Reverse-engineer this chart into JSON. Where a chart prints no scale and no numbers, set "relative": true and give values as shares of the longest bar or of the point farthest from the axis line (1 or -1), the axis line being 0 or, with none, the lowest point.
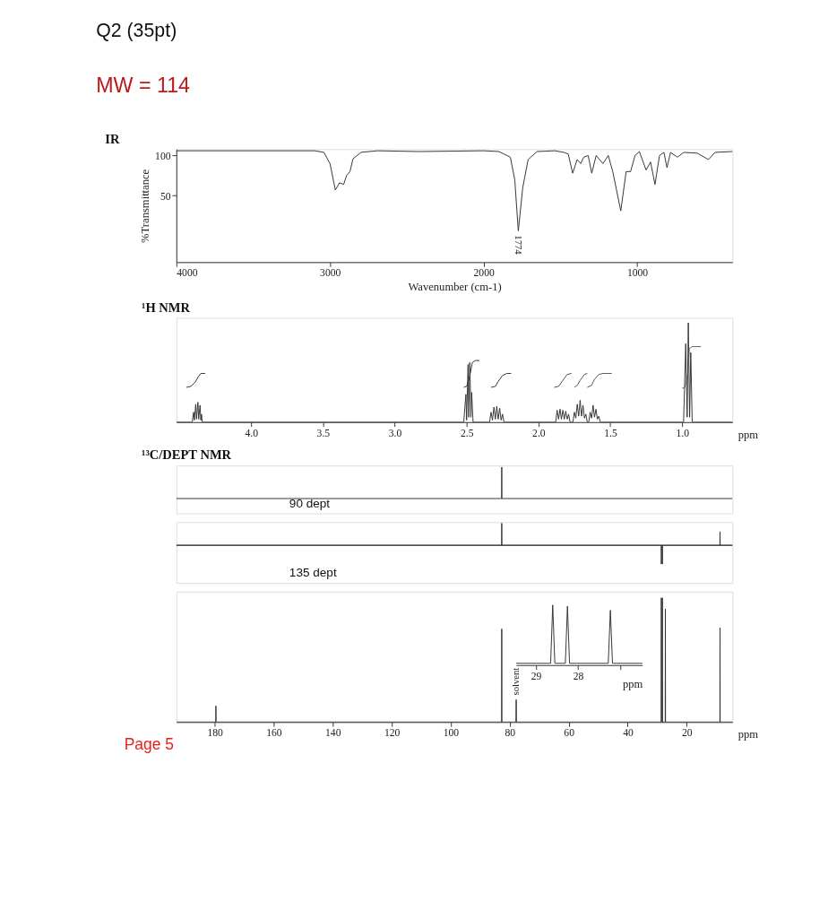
{
  "chart_data": [
    {
      "type": "other",
      "title": "Q2 (35pt)",
      "subtitle": "MW = 114"
    },
    {
      "type": "line",
      "title": "IR",
      "xlabel": "Wavenumber (cm-1)",
      "ylabel": "%Transmittance",
      "xlim": [
        4000,
        380
      ],
      "xticks": [
        4000,
        3000,
        2000,
        1000
      ],
      "ylim": [
        -33,
        108
      ],
      "yticks": [
        50,
        100
      ],
      "grid": false,
      "series": [
        {
          "color": "#333333",
          "x": [
            4000,
            3100,
            3040,
            3000,
            2965,
            2938,
            2911,
            2892,
            2870,
            2850,
            2798,
            2690,
            2420,
            2000,
            1900,
            1826,
            1797,
            1774,
            1745,
            1710,
            1652,
            1536,
            1478,
            1449,
            1420,
            1391,
            1368,
            1348,
            1319,
            1296,
            1267,
            1223,
            1188,
            1159,
            1107,
            1072,
            1043,
            1014,
            986,
            942,
            913,
            884,
            855,
            826,
            806,
            783,
            739,
            696,
            609,
            536,
            493,
            380
          ],
          "values": [
            106,
            106,
            104,
            90,
            57,
            66,
            64,
            75,
            80,
            96,
            104,
            106,
            105,
            106,
            105,
            98,
            70,
            6,
            60,
            95,
            105,
            106,
            104,
            102,
            78,
            95,
            90,
            98,
            100,
            78,
            100,
            90,
            100,
            80,
            31,
            80,
            80,
            100,
            105,
            82,
            92,
            64,
            100,
            104,
            85,
            104,
            98,
            104,
            103,
            95,
            104,
            105
          ]
        }
      ],
      "annotations": [
        {
          "text": "1774",
          "x": 1774,
          "y": 6
        }
      ]
    },
    {
      "type": "line",
      "title": "¹H NMR",
      "xlabel": "ppm",
      "relative": true,
      "tick_labels": "x",
      "xlim": [
        4.52,
        0.65
      ],
      "xticks": [
        {
          "value": 4,
          "label": "4.0"
        },
        3.5,
        {
          "value": 3,
          "label": "3.0"
        },
        2.5,
        {
          "value": 2,
          "label": "2.0"
        },
        1.5,
        {
          "value": 1,
          "label": "1.0"
        }
      ],
      "series": [
        {
          "color": "#333333",
          "x": [
            4.52,
            4.41,
            4.4,
            4.395,
            4.385,
            4.38,
            4.37,
            4.365,
            4.355,
            4.35,
            4.345,
            4.34,
            2.52,
            2.505,
            2.5,
            2.49,
            2.485,
            2.478,
            2.47,
            2.465,
            2.455,
            2.34,
            2.33,
            2.32,
            2.31,
            2.3,
            2.29,
            2.28,
            2.27,
            2.26,
            2.25,
            2.24,
            1.88,
            1.87,
            1.86,
            1.85,
            1.84,
            1.83,
            1.82,
            1.81,
            1.8,
            1.79,
            1.78,
            1.76,
            1.75,
            1.74,
            1.73,
            1.72,
            1.71,
            1.7,
            1.69,
            1.68,
            1.67,
            1.66,
            1.65,
            1.64,
            1.63,
            1.62,
            1.61,
            1.6,
            1.59,
            1.58,
            1.57,
            0.99,
            0.975,
            0.965,
            0.957,
            0.948,
            0.94,
            0.93,
            0.65
          ],
          "values": [
            0,
            0,
            0.1,
            0.02,
            0.18,
            0.03,
            0.2,
            0.03,
            0.17,
            0.02,
            0.08,
            0,
            0,
            0.28,
            0.02,
            0.58,
            0.05,
            0.6,
            0.05,
            0.3,
            0,
            0,
            0.1,
            0.02,
            0.15,
            0.03,
            0.16,
            0.03,
            0.14,
            0.02,
            0.08,
            0,
            0,
            0.12,
            0.03,
            0.13,
            0.03,
            0.12,
            0.03,
            0.11,
            0.03,
            0.08,
            0,
            0,
            0.1,
            0.04,
            0.18,
            0.06,
            0.22,
            0.06,
            0.17,
            0.04,
            0.08,
            0,
            0,
            0.1,
            0.04,
            0.17,
            0.05,
            0.13,
            0.03,
            0.06,
            0,
            0,
            0.79,
            0.05,
            1,
            0.05,
            0.7,
            0,
            0
          ]
        },
        {
          "color": "#333333",
          "x": [
            4.45,
            4.42,
            4.39,
            4.37,
            4.35,
            4.32
          ],
          "values": [
            0.35,
            0.36,
            0.4,
            0.45,
            0.49,
            0.49
          ]
        },
        {
          "color": "#333333",
          "x": [
            2.52,
            2.5,
            2.48,
            2.46,
            2.44,
            2.41
          ],
          "values": [
            0.35,
            0.36,
            0.45,
            0.6,
            0.62,
            0.62
          ]
        },
        {
          "color": "#333333",
          "x": [
            2.33,
            2.3,
            2.28,
            2.25,
            2.22,
            2.19
          ],
          "values": [
            0.35,
            0.36,
            0.41,
            0.47,
            0.49,
            0.49
          ]
        },
        {
          "color": "#4a4a4a",
          "x": [
            1.89,
            1.86,
            1.83,
            1.8,
            1.77
          ],
          "values": [
            0.35,
            0.36,
            0.42,
            0.48,
            0.49
          ]
        },
        {
          "color": "#505050",
          "x": [
            1.75,
            1.73,
            1.71,
            1.68,
            1.66
          ],
          "values": [
            0.35,
            0.37,
            0.42,
            0.48,
            0.49
          ]
        },
        {
          "color": "#565656",
          "x": [
            1.66,
            1.63,
            1.61,
            1.58,
            1.55,
            1.49
          ],
          "values": [
            0.35,
            0.37,
            0.43,
            0.48,
            0.49,
            0.49
          ]
        },
        {
          "color": "#5c5c5c",
          "x": [
            1.0,
            0.98,
            0.96,
            0.95,
            0.93,
            0.87
          ],
          "values": [
            0.34,
            0.35,
            0.5,
            0.74,
            0.76,
            0.76
          ]
        }
      ]
    },
    {
      "type": "line",
      "title": "¹³C/DEPT NMR",
      "relative": true,
      "tick_labels": false,
      "xlim": [
        193,
        4.5
      ],
      "series": [
        {
          "color": "#333333",
          "x": [
            193,
            82.75,
            82.7,
            82.65,
            4.5
          ],
          "values": [
            0,
            0,
            1,
            0,
            0
          ]
        }
      ],
      "annotations": [
        "90 dept"
      ]
    },
    {
      "type": "line",
      "relative": true,
      "tick_labels": false,
      "xlim": [
        193,
        4.5
      ],
      "series": [
        {
          "color": "#333333",
          "x": [
            193,
            82.75,
            82.7,
            82.65,
            28.65,
            28.6,
            28.55,
            28.3,
            28.25,
            28.2,
            8.75,
            8.7,
            8.65,
            4.5
          ],
          "values": [
            0,
            0,
            1,
            0,
            0,
            -0.85,
            0,
            0,
            -0.85,
            0,
            0,
            0.62,
            0,
            0
          ]
        }
      ],
      "annotations": [
        "135 dept"
      ]
    },
    {
      "type": "line",
      "xlabel": "ppm",
      "relative": true,
      "tick_labels": "x",
      "xlim": [
        193,
        4.5
      ],
      "xticks": [
        180,
        160,
        140,
        120,
        100,
        80,
        60,
        40,
        20
      ],
      "series": [
        {
          "color": "#333333",
          "x": [
            193,
            179.65,
            179.6,
            179.55,
            82.75,
            82.7,
            82.65,
            77.9,
            77.8,
            77.7,
            28.65,
            28.6,
            28.55,
            28.3,
            28.25,
            28.2,
            27.28,
            27.23,
            27.18,
            8.75,
            8.7,
            8.65,
            4.5
          ],
          "values": [
            0,
            0,
            0.13,
            0,
            0,
            0.75,
            0,
            0,
            0.18,
            0,
            0,
            1,
            0,
            0,
            1,
            0,
            0,
            0.91,
            0,
            0,
            0.76,
            0,
            0
          ]
        }
      ],
      "annotations": [
        {
          "text": "solvent",
          "x": 77.8,
          "y": 0.18
        },
        "Page 5"
      ]
    },
    {
      "type": "line",
      "xlabel": "ppm",
      "relative": true,
      "tick_labels": "x",
      "xlim": [
        29.47,
        26.47
      ],
      "xticks": [
        29,
        28,
        {
          "value": 27,
          "label": null
        }
      ],
      "series": [
        {
          "color": "#333333",
          "x": [
            29.47,
            28.65,
            28.6,
            28.55,
            28.3,
            28.25,
            28.2,
            27.28,
            27.23,
            27.18,
            26.47
          ],
          "values": [
            0,
            0,
            1,
            0,
            0,
            0.98,
            0,
            0,
            0.91,
            0,
            0
          ]
        }
      ]
    }
  ]
}
